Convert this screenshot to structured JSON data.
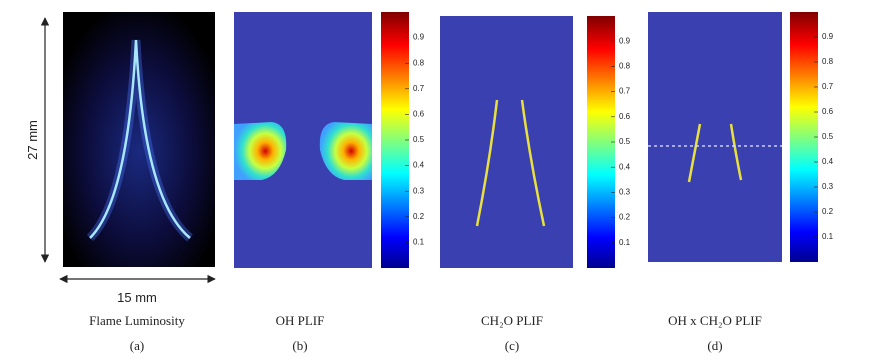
{
  "panels": [
    {
      "caption": "Flame Luminosity",
      "letter": "(a)",
      "height_label": "27 mm",
      "width_label": "15 mm"
    },
    {
      "caption": "OH PLIF",
      "letter": "(b)",
      "colorbar_ticks": [
        "0.1",
        "0.2",
        "0.3",
        "0.4",
        "0.5",
        "0.6",
        "0.7",
        "0.8",
        "0.9"
      ]
    },
    {
      "caption": "CH₂O PLIF",
      "letter": "(c)",
      "colorbar_ticks": [
        "0.1",
        "0.2",
        "0.3",
        "0.4",
        "0.5",
        "0.6",
        "0.7",
        "0.8",
        "0.9"
      ]
    },
    {
      "caption": "OH x CH₂O PLIF",
      "letter": "(d)",
      "colorbar_ticks": [
        "0.1",
        "0.2",
        "0.3",
        "0.4",
        "0.5",
        "0.6",
        "0.7",
        "0.8",
        "0.9"
      ]
    }
  ]
}
